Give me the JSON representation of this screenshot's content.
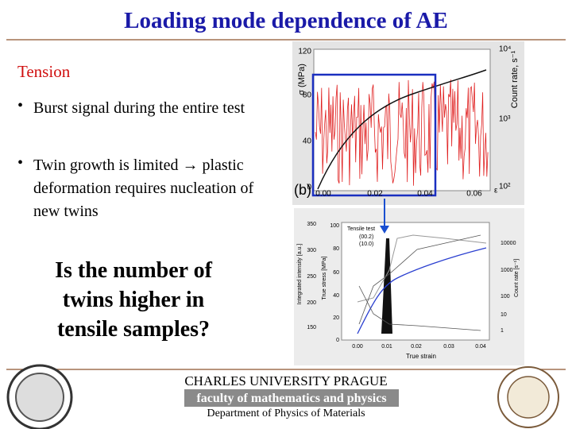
{
  "header": {
    "title": "Loading mode dependence of AE"
  },
  "section": "Tension",
  "bullets": [
    "Burst signal during the entire test",
    "Twin growth is limited → plastic deformation requires nucleation of new twins"
  ],
  "question": "Is the number of twins higher in tensile samples?",
  "figure_top": {
    "panel": "(b)",
    "y_label": "σ (MPa)",
    "y2_label": "Count rate, s⁻¹",
    "x_label": "ε",
    "y_ticks": [
      "120",
      "80",
      "40",
      "0"
    ],
    "y2_ticks": [
      "10⁴",
      "10³",
      "10²"
    ],
    "x_ticks": [
      "0.00",
      "0.02",
      "0.04",
      "0.06"
    ]
  },
  "figure_bottom": {
    "y_label": "Integrated intensity [a.u.]",
    "y2_label": "True stress [MPa]",
    "y3_label": "Count rate [s⁻¹]",
    "x_label": "True strain",
    "y_ticks": [
      "350",
      "300",
      "250",
      "200",
      "150"
    ],
    "y2_ticks": [
      "100",
      "80",
      "60",
      "40",
      "20",
      "0"
    ],
    "y3_ticks": [
      "10000",
      "1000",
      "100",
      "10",
      "1"
    ],
    "x_ticks": [
      "0.00",
      "0.01",
      "0.02",
      "0.03",
      "0.04"
    ],
    "legend": [
      "Tensile test",
      "(00.2)",
      "(10.0)"
    ]
  },
  "footer": {
    "university": "CHARLES UNIVERSITY PRAGUE",
    "faculty": "faculty of mathematics and physics",
    "department": "Department of Physics of Materials"
  }
}
